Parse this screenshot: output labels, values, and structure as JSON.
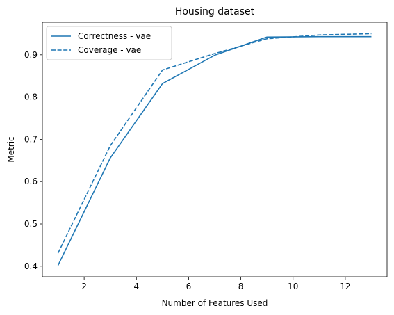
{
  "chart_data": {
    "type": "line",
    "title": "Housing dataset",
    "xlabel": "Number of Features Used",
    "ylabel": "Metric",
    "xlim": [
      0.4,
      13.6
    ],
    "ylim": [
      0.375,
      0.977
    ],
    "xticks": [
      2,
      4,
      6,
      8,
      10,
      12
    ],
    "yticks": [
      0.4,
      0.5,
      0.6,
      0.7,
      0.8,
      0.9
    ],
    "grid": false,
    "legend_position": "top-left",
    "x": [
      1,
      3,
      5,
      7,
      9,
      11,
      13
    ],
    "series": [
      {
        "name": "Correctness - vae",
        "style": "solid",
        "color": "#1f77b4",
        "values": [
          0.402,
          0.656,
          0.832,
          0.899,
          0.942,
          0.943,
          0.943
        ]
      },
      {
        "name": "Coverage - vae",
        "style": "dashed",
        "color": "#1f77b4",
        "values": [
          0.431,
          0.685,
          0.864,
          0.903,
          0.938,
          0.947,
          0.95
        ]
      }
    ]
  }
}
